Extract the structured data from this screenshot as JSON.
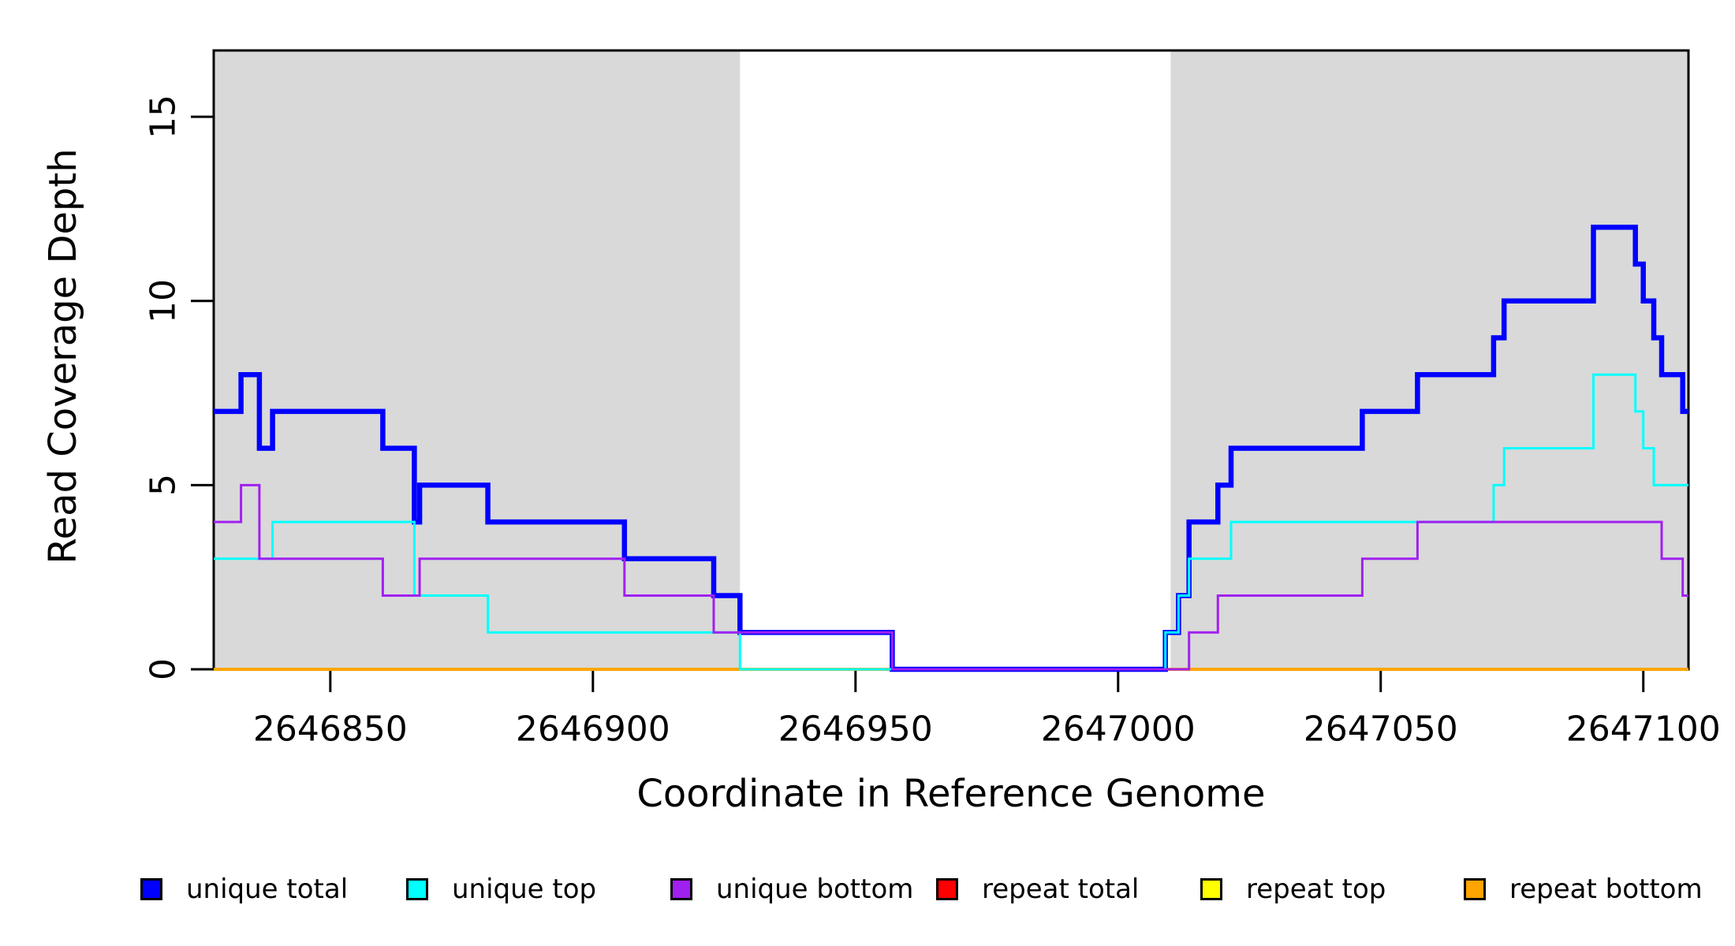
{
  "chart_data": {
    "type": "line",
    "subtype": "step-post",
    "title": "",
    "xlabel": "Coordinate in Reference Genome",
    "ylabel": "Read Coverage Depth",
    "xlim": [
      2646827.8,
      2647108.6
    ],
    "ylim": [
      0,
      16.8
    ],
    "x_ticks": [
      2646850,
      2646900,
      2646950,
      2647000,
      2647050,
      2647100
    ],
    "x_tick_labels": [
      "2646850",
      "2646900",
      "2646950",
      "2647000",
      "2647050",
      "2647100"
    ],
    "y_ticks": [
      0,
      5,
      10,
      15
    ],
    "y_tick_labels": [
      "0",
      "5",
      "10",
      "15"
    ],
    "grid": false,
    "background_color": "#ffffff",
    "shading_color": "#d9d9d9",
    "shaded_regions": [
      {
        "name": "left-gray-band",
        "x0": 2646827.8,
        "x1": 2646928
      },
      {
        "name": "right-gray-band",
        "x0": 2647010,
        "x1": 2647108.6
      }
    ],
    "series": [
      {
        "name": "repeat total",
        "color": "#FF0000",
        "width": 4,
        "steps": [
          [
            2646827.8,
            0
          ]
        ]
      },
      {
        "name": "repeat top",
        "color": "#FFFF00",
        "width": 4,
        "steps": [
          [
            2646827.8,
            0
          ]
        ]
      },
      {
        "name": "repeat bottom",
        "color": "#FFA500",
        "width": 4,
        "steps": [
          [
            2646827.8,
            0
          ]
        ]
      },
      {
        "name": "unique total",
        "color": "#0000FF",
        "width": 6.5,
        "steps": [
          [
            2646827.8,
            7
          ],
          [
            2646833,
            8
          ],
          [
            2646836.5,
            6
          ],
          [
            2646839,
            7
          ],
          [
            2646860,
            6
          ],
          [
            2646866,
            4
          ],
          [
            2646867,
            5
          ],
          [
            2646880,
            4
          ],
          [
            2646906,
            3
          ],
          [
            2646923,
            2
          ],
          [
            2646928,
            1
          ],
          [
            2646957,
            0
          ],
          [
            2647009,
            1
          ],
          [
            2647011.5,
            2
          ],
          [
            2647013.5,
            4
          ],
          [
            2647019,
            5
          ],
          [
            2647021.5,
            6
          ],
          [
            2647046.5,
            7
          ],
          [
            2647057,
            8
          ],
          [
            2647071.5,
            9
          ],
          [
            2647073.5,
            10
          ],
          [
            2647090.5,
            12
          ],
          [
            2647098.5,
            11
          ],
          [
            2647100,
            10
          ],
          [
            2647102,
            9
          ],
          [
            2647103.5,
            8
          ],
          [
            2647107.5,
            7
          ]
        ]
      },
      {
        "name": "unique top",
        "color": "#00FFFF",
        "width": 3,
        "steps": [
          [
            2646827.8,
            3
          ],
          [
            2646839,
            4
          ],
          [
            2646866,
            2
          ],
          [
            2646880,
            1
          ],
          [
            2646928,
            0
          ],
          [
            2647009,
            1
          ],
          [
            2647011.5,
            2
          ],
          [
            2647013.5,
            3
          ],
          [
            2647021.5,
            4
          ],
          [
            2647071.5,
            5
          ],
          [
            2647073.5,
            6
          ],
          [
            2647090.5,
            8
          ],
          [
            2647098.5,
            7
          ],
          [
            2647100,
            6
          ],
          [
            2647102,
            5
          ]
        ]
      },
      {
        "name": "unique bottom",
        "color": "#A020F0",
        "width": 3,
        "steps": [
          [
            2646827.8,
            4
          ],
          [
            2646833,
            5
          ],
          [
            2646836.5,
            3
          ],
          [
            2646860,
            2
          ],
          [
            2646867,
            3
          ],
          [
            2646906,
            2
          ],
          [
            2646923,
            1
          ],
          [
            2646957,
            0
          ],
          [
            2647013.5,
            1
          ],
          [
            2647019,
            2
          ],
          [
            2647046.5,
            3
          ],
          [
            2647057,
            4
          ],
          [
            2647103.5,
            3
          ],
          [
            2647107.5,
            2
          ]
        ]
      }
    ],
    "legend": [
      {
        "label": "unique total",
        "color": "#0000FF"
      },
      {
        "label": "unique top",
        "color": "#00FFFF"
      },
      {
        "label": "unique bottom",
        "color": "#A020F0"
      },
      {
        "label": "repeat total",
        "color": "#FF0000"
      },
      {
        "label": "repeat top",
        "color": "#FFFF00"
      },
      {
        "label": "repeat bottom",
        "color": "#FFA500"
      }
    ],
    "legend_position": "bottom"
  }
}
